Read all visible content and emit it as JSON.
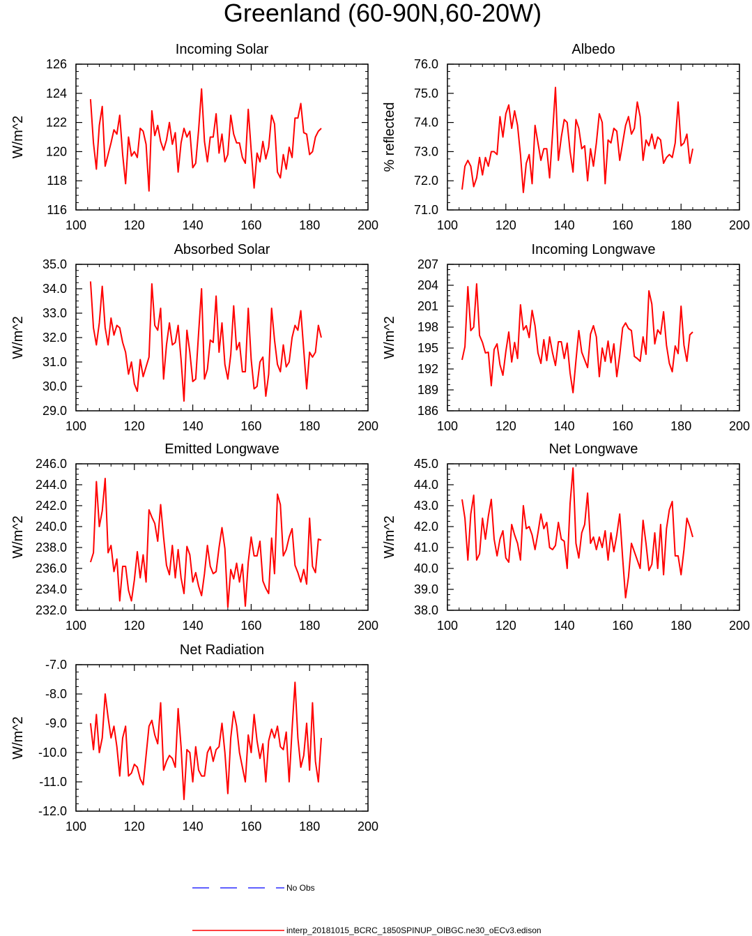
{
  "title": "Greenland (60-90N,60-20W)",
  "colors": {
    "model": "#ff0000",
    "obs": "#0000ff",
    "axes": "#000000"
  },
  "legend": {
    "obs_label": "No Obs",
    "model_label": "interp_20181015_BCRC_1850SPINUP_OIBGC.ne30_oECv3.edison"
  },
  "chart_data": [
    {
      "type": "line",
      "title": "Incoming Solar",
      "ylabel": "W/m^2",
      "xlim": [
        100,
        200
      ],
      "ylim": [
        116,
        126
      ],
      "xticks": [
        "100",
        "120",
        "140",
        "160",
        "180",
        "200"
      ],
      "yticks": [
        "116",
        "118",
        "120",
        "122",
        "124",
        "126"
      ],
      "x_start": 105,
      "series": [
        {
          "values": [
            123.6,
            120.6,
            118.8,
            121.8,
            123.1,
            119.0,
            119.8,
            120.6,
            121.5,
            121.2,
            122.5,
            119.8,
            117.8,
            121.0,
            119.7,
            120.0,
            119.6,
            121.6,
            121.4,
            120.5,
            117.3,
            122.8,
            121.1,
            121.8,
            120.7,
            120.1,
            120.8,
            122.0,
            120.5,
            121.3,
            118.6,
            120.6,
            121.6,
            121.0,
            121.4,
            118.9,
            119.2,
            121.5,
            124.3,
            120.7,
            119.3,
            121.0,
            121.0,
            122.6,
            119.9,
            121.2,
            119.3,
            119.8,
            122.5,
            121.2,
            120.6,
            120.6,
            119.6,
            119.2,
            122.9,
            120.1,
            117.5,
            119.9,
            119.3,
            120.7,
            119.5,
            120.3,
            122.5,
            121.9,
            118.6,
            118.2,
            119.8,
            118.8,
            120.3,
            119.6,
            122.3,
            122.3,
            123.3,
            121.3,
            121.2,
            119.8,
            120.0,
            121.0,
            121.4,
            121.6
          ]
        }
      ]
    },
    {
      "type": "line",
      "title": "Albedo",
      "ylabel": "% reflected",
      "xlim": [
        100,
        200
      ],
      "ylim": [
        71.0,
        76.0
      ],
      "xticks": [
        "100",
        "120",
        "140",
        "160",
        "180",
        "200"
      ],
      "yticks": [
        "71.0",
        "72.0",
        "73.0",
        "74.0",
        "75.0",
        "76.0"
      ],
      "x_start": 105,
      "series": [
        {
          "values": [
            71.7,
            72.5,
            72.7,
            72.5,
            71.8,
            72.1,
            72.8,
            72.2,
            72.8,
            72.5,
            73.0,
            73.0,
            72.9,
            74.2,
            73.5,
            74.3,
            74.6,
            73.8,
            74.4,
            73.9,
            72.9,
            71.6,
            72.6,
            72.9,
            71.9,
            73.9,
            73.3,
            72.7,
            73.1,
            73.1,
            72.1,
            73.6,
            75.2,
            72.7,
            73.5,
            74.1,
            74.0,
            73.0,
            72.3,
            74.1,
            73.8,
            73.1,
            73.2,
            72.0,
            73.1,
            72.5,
            73.3,
            74.3,
            74.0,
            71.9,
            73.4,
            73.3,
            73.8,
            73.7,
            72.7,
            73.3,
            73.9,
            74.2,
            73.6,
            73.8,
            74.7,
            74.2,
            72.7,
            73.4,
            73.2,
            73.6,
            73.1,
            73.5,
            73.4,
            72.6,
            72.8,
            72.9,
            72.8,
            73.3,
            74.7,
            73.2,
            73.3,
            73.6,
            72.6,
            73.1
          ]
        }
      ]
    },
    {
      "type": "line",
      "title": "Absorbed Solar",
      "ylabel": "W/m^2",
      "xlim": [
        100,
        200
      ],
      "ylim": [
        29.0,
        35.0
      ],
      "xticks": [
        "100",
        "120",
        "140",
        "160",
        "180",
        "200"
      ],
      "yticks": [
        "29.0",
        "30.0",
        "31.0",
        "32.0",
        "33.0",
        "34.0",
        "35.0"
      ],
      "x_start": 105,
      "series": [
        {
          "values": [
            34.3,
            32.4,
            31.7,
            32.6,
            34.1,
            32.4,
            31.7,
            32.8,
            32.1,
            32.5,
            32.4,
            31.8,
            31.4,
            30.5,
            31.0,
            30.1,
            29.8,
            31.1,
            30.4,
            30.8,
            31.2,
            34.2,
            32.5,
            32.3,
            33.2,
            30.3,
            31.7,
            32.6,
            31.7,
            31.8,
            32.5,
            31.1,
            29.4,
            32.3,
            31.4,
            30.2,
            30.3,
            32.2,
            34.0,
            30.3,
            30.7,
            31.9,
            31.8,
            33.7,
            31.4,
            32.6,
            30.9,
            30.3,
            31.3,
            33.3,
            31.5,
            31.8,
            30.6,
            30.6,
            33.2,
            31.1,
            29.9,
            30.0,
            31.0,
            31.2,
            29.6,
            30.5,
            33.2,
            31.9,
            30.9,
            30.6,
            31.7,
            30.8,
            31.0,
            32.0,
            32.5,
            32.3,
            33.1,
            31.5,
            29.9,
            31.4,
            31.2,
            31.4,
            32.5,
            32.0
          ]
        }
      ]
    },
    {
      "type": "line",
      "title": "Incoming Longwave",
      "ylabel": "W/m^2",
      "xlim": [
        100,
        200
      ],
      "ylim": [
        186,
        207
      ],
      "xticks": [
        "100",
        "120",
        "140",
        "160",
        "180",
        "200"
      ],
      "yticks": [
        "186",
        "189",
        "192",
        "195",
        "198",
        "201",
        "204",
        "207"
      ],
      "x_start": 105,
      "series": [
        {
          "values": [
            193.3,
            195.2,
            203.8,
            197.5,
            198.0,
            204.2,
            196.8,
            195.8,
            194.3,
            194.4,
            189.6,
            194.8,
            195.6,
            192.6,
            191.1,
            194.5,
            197.3,
            193.0,
            195.8,
            193.5,
            201.2,
            197.6,
            198.2,
            196.5,
            200.4,
            198.2,
            194.3,
            192.8,
            196.2,
            193.2,
            196.6,
            194.3,
            192.5,
            195.9,
            195.9,
            193.5,
            195.7,
            191.4,
            188.6,
            193.2,
            197.5,
            194.4,
            193.3,
            192.2,
            197.0,
            198.2,
            196.6,
            190.9,
            195.0,
            193.1,
            196.0,
            192.9,
            195.6,
            190.9,
            194.0,
            197.9,
            198.6,
            197.8,
            197.5,
            193.8,
            193.5,
            193.1,
            196.6,
            194.1,
            203.2,
            201.3,
            195.6,
            197.6,
            197.0,
            200.2,
            195.4,
            192.8,
            191.6,
            195.3,
            194.2,
            201.0,
            195.4,
            193.1,
            196.9,
            197.3
          ]
        }
      ]
    },
    {
      "type": "line",
      "title": "Emitted Longwave",
      "ylabel": "W/m^2",
      "xlim": [
        100,
        200
      ],
      "ylim": [
        232.0,
        246.0
      ],
      "xticks": [
        "100",
        "120",
        "140",
        "160",
        "180",
        "200"
      ],
      "yticks": [
        "232.0",
        "234.0",
        "236.0",
        "238.0",
        "240.0",
        "242.0",
        "244.0",
        "246.0"
      ],
      "x_start": 105,
      "series": [
        {
          "values": [
            236.6,
            237.5,
            244.3,
            240.0,
            241.5,
            244.6,
            237.5,
            238.2,
            235.7,
            236.9,
            232.9,
            236.2,
            236.2,
            233.9,
            232.9,
            234.9,
            237.6,
            235.1,
            237.3,
            234.7,
            241.6,
            240.9,
            240.3,
            238.6,
            242.1,
            239.0,
            236.3,
            235.4,
            238.2,
            235.1,
            237.8,
            235.1,
            233.6,
            238.1,
            237.3,
            234.7,
            235.6,
            234.3,
            233.4,
            235.5,
            238.2,
            236.2,
            235.5,
            235.7,
            238.0,
            239.9,
            237.9,
            232.3,
            235.9,
            235.0,
            236.5,
            234.7,
            236.4,
            232.4,
            236.6,
            239.0,
            237.2,
            237.2,
            238.6,
            234.8,
            234.1,
            233.6,
            238.9,
            235.5,
            243.1,
            242.1,
            237.2,
            237.8,
            239.0,
            239.8,
            236.3,
            235.6,
            234.7,
            235.9,
            234.5,
            240.8,
            236.2,
            235.6,
            238.8,
            238.7
          ]
        }
      ]
    },
    {
      "type": "line",
      "title": "Net Longwave",
      "ylabel": "W/m^2",
      "xlim": [
        100,
        200
      ],
      "ylim": [
        38.0,
        45.0
      ],
      "xticks": [
        "100",
        "120",
        "140",
        "160",
        "180",
        "200"
      ],
      "yticks": [
        "38.0",
        "39.0",
        "40.0",
        "41.0",
        "42.0",
        "43.0",
        "44.0",
        "45.0"
      ],
      "x_start": 105,
      "series": [
        {
          "values": [
            43.3,
            42.4,
            40.4,
            42.6,
            43.5,
            40.4,
            40.7,
            42.4,
            41.4,
            42.5,
            43.3,
            41.4,
            40.6,
            41.4,
            41.8,
            40.5,
            40.3,
            42.1,
            41.6,
            41.2,
            40.4,
            43.0,
            41.9,
            42.0,
            41.6,
            40.9,
            41.7,
            42.6,
            41.9,
            42.2,
            41.0,
            40.9,
            41.1,
            42.2,
            41.4,
            41.3,
            40.0,
            43.1,
            44.8,
            41.2,
            40.5,
            41.7,
            42.1,
            43.6,
            41.2,
            41.5,
            40.9,
            41.5,
            41.0,
            41.8,
            40.4,
            41.7,
            40.8,
            41.6,
            42.6,
            40.5,
            38.6,
            39.6,
            41.2,
            40.8,
            40.4,
            40.0,
            42.3,
            41.2,
            39.9,
            40.2,
            41.7,
            40.0,
            42.1,
            39.7,
            41.9,
            42.8,
            43.2,
            40.6,
            40.6,
            39.7,
            40.9,
            42.4,
            42.0,
            41.5
          ]
        }
      ]
    },
    {
      "type": "line",
      "title": "Net Radiation",
      "ylabel": "W/m^2",
      "xlim": [
        100,
        200
      ],
      "ylim": [
        -12.0,
        -7.0
      ],
      "xticks": [
        "100",
        "120",
        "140",
        "160",
        "180",
        "200"
      ],
      "yticks": [
        "-12.0",
        "-11.0",
        "-10.0",
        "-9.0",
        "-8.0",
        "-7.0"
      ],
      "x_start": 105,
      "series": [
        {
          "values": [
            -9.0,
            -9.9,
            -8.7,
            -10.0,
            -9.5,
            -8.0,
            -8.8,
            -9.5,
            -9.1,
            -9.8,
            -10.8,
            -9.5,
            -9.1,
            -10.8,
            -10.7,
            -10.4,
            -10.5,
            -10.9,
            -11.1,
            -10.1,
            -9.1,
            -8.9,
            -9.4,
            -9.7,
            -8.3,
            -10.6,
            -10.3,
            -10.1,
            -10.2,
            -10.5,
            -8.5,
            -9.8,
            -11.6,
            -9.9,
            -10.0,
            -11.0,
            -9.8,
            -10.6,
            -10.8,
            -10.8,
            -10.0,
            -9.8,
            -10.3,
            -9.9,
            -9.8,
            -9.0,
            -10.0,
            -11.4,
            -9.5,
            -8.6,
            -9.1,
            -10.0,
            -10.5,
            -11.0,
            -9.4,
            -10.0,
            -8.7,
            -9.6,
            -10.2,
            -9.7,
            -11.0,
            -9.6,
            -9.2,
            -9.5,
            -9.1,
            -9.8,
            -9.9,
            -9.3,
            -11.0,
            -9.2,
            -7.6,
            -9.5,
            -10.5,
            -10.1,
            -9.0,
            -10.6,
            -8.3,
            -10.3,
            -11.0,
            -9.5
          ]
        }
      ]
    }
  ]
}
